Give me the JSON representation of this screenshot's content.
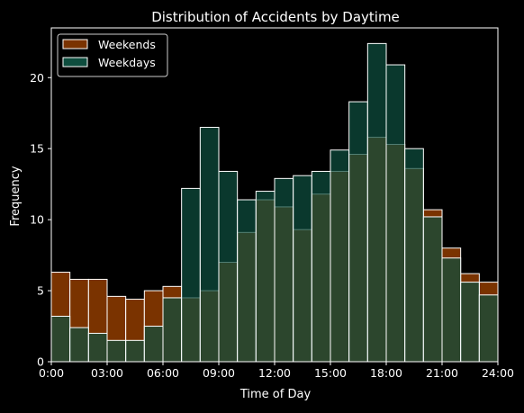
{
  "chart_data": {
    "type": "bar",
    "title": "Distribution of Accidents by Daytime",
    "xlabel": "Time of Day",
    "ylabel": "Frequency",
    "xlim": [
      0,
      24
    ],
    "ylim": [
      0,
      23.5
    ],
    "x_ticks": [
      "0:00",
      "03:00",
      "06:00",
      "09:00",
      "12:00",
      "15:00",
      "18:00",
      "21:00",
      "24:00"
    ],
    "y_ticks": [
      "0",
      "5",
      "10",
      "15",
      "20"
    ],
    "y_tick_values": [
      0,
      5,
      10,
      15,
      20
    ],
    "bin_edges": [
      0,
      1,
      2,
      3,
      4,
      5,
      6,
      7,
      8,
      9,
      10,
      11,
      12,
      13,
      14,
      15,
      16,
      17,
      18,
      19,
      20,
      21,
      22,
      23,
      24
    ],
    "grid": false,
    "legend_position": "top-left",
    "series": [
      {
        "name": "Weekends",
        "color": "#7a3300",
        "values": [
          6.3,
          5.8,
          5.8,
          4.6,
          4.4,
          5.0,
          5.3,
          4.5,
          5.0,
          7.0,
          9.1,
          11.4,
          10.9,
          9.3,
          11.8,
          13.4,
          14.6,
          15.8,
          15.3,
          13.6,
          10.7,
          8.0,
          6.2,
          5.6
        ]
      },
      {
        "name": "Weekdays",
        "color": "#0e4d3e",
        "values": [
          3.2,
          2.4,
          2.0,
          1.5,
          1.5,
          2.5,
          4.5,
          12.2,
          16.5,
          13.4,
          11.4,
          12.0,
          12.9,
          13.1,
          13.4,
          14.9,
          18.3,
          22.4,
          20.9,
          15.0,
          10.2,
          7.3,
          5.6,
          4.7
        ]
      }
    ],
    "overlap_color": "#4a6a43",
    "edge_color": "#ffffff"
  }
}
